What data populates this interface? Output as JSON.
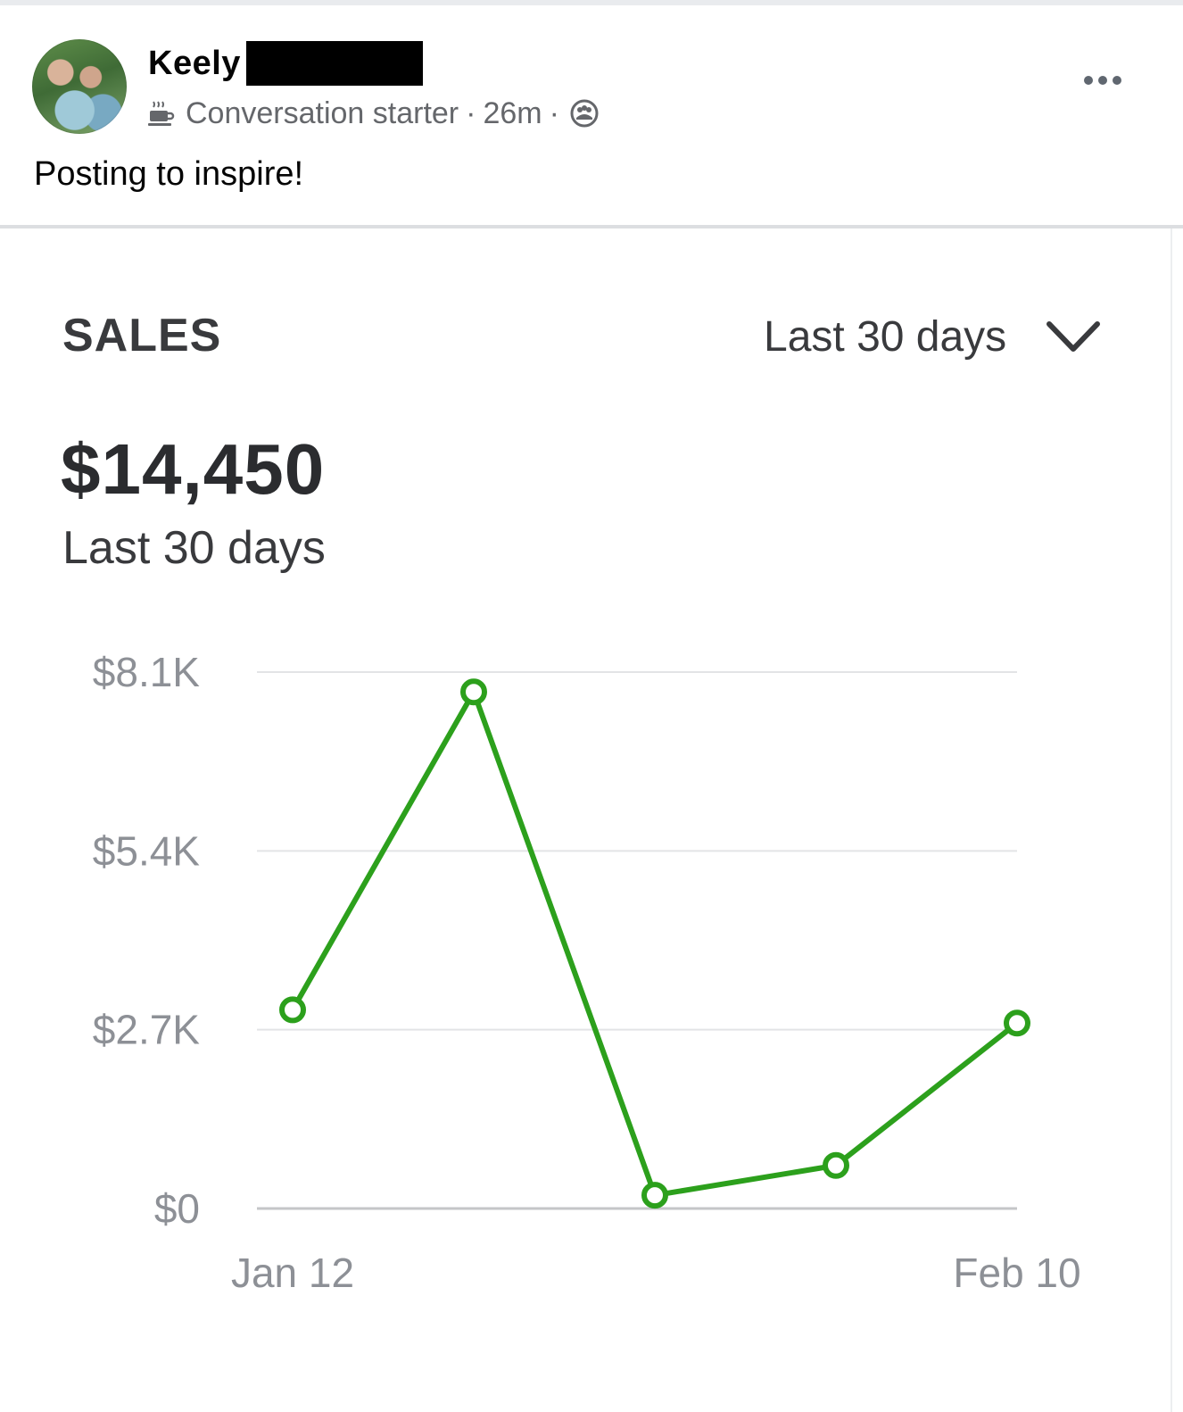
{
  "post": {
    "author_name": "Keely",
    "badge_label": "Conversation starter",
    "separator": "·",
    "time": "26m",
    "text": "Posting to inspire!",
    "badge_icon": "coffee-cup-icon",
    "audience_icon": "group-audience-icon",
    "more_icon": "more-options-icon"
  },
  "card": {
    "title": "SALES",
    "range_label": "Last 30 days",
    "range_icon": "chevron-down-icon",
    "total": "$14,450",
    "total_caption": "Last 30 days"
  },
  "colors": {
    "line": "#2ca01c",
    "grid": "#e3e4e6",
    "axis": "#c5c6c8",
    "tick_text": "#8d9096",
    "heading": "#393a3d"
  },
  "chart_data": {
    "type": "line",
    "title": "SALES",
    "x_tick_labels": [
      "Jan 12",
      "Feb 10"
    ],
    "y_tick_labels": [
      "$0",
      "$2.7K",
      "$5.4K",
      "$8.1K"
    ],
    "y_tick_values": [
      0,
      2700,
      5400,
      8100
    ],
    "ylim": [
      0,
      8100
    ],
    "grid": true,
    "legend": "none",
    "series": [
      {
        "values": [
          3000,
          7800,
          200,
          650,
          2800
        ]
      }
    ]
  }
}
